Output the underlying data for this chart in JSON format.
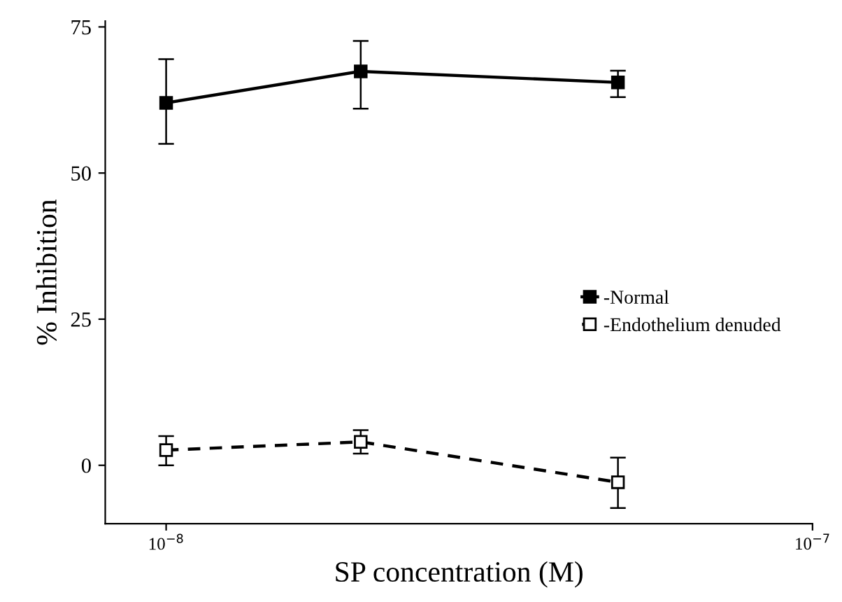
{
  "chart_data": {
    "type": "line",
    "xlabel": "SP concentration (M)",
    "ylabel": "% Inhibition",
    "log": "x",
    "xlim": [
      8.05e-09,
      1e-07
    ],
    "xticks": [
      {
        "value": 1e-08,
        "label": "10$^{−8}$"
      },
      {
        "value": 1e-07,
        "label": "10$^{−7}$"
      }
    ],
    "ylim": [
      -10,
      76
    ],
    "yticks": [
      0,
      25,
      50,
      75
    ],
    "grid": false,
    "legend": "right",
    "marker": "square",
    "x": [
      1e-08,
      2e-08,
      5e-08
    ],
    "series": [
      {
        "name": "-Normal",
        "color": "#000000",
        "line_style": "solid",
        "values": [
          62,
          67.4,
          65.5
        ],
        "errors": [
          [
            55,
            69.5
          ],
          [
            61,
            72.6
          ],
          [
            63,
            67.5
          ]
        ]
      },
      {
        "name": "-Endothelium denuded",
        "color": "#000000",
        "line_style": "dashed",
        "values": [
          2.6,
          4,
          -2.9
        ],
        "errors": [
          [
            0,
            5
          ],
          [
            2,
            6
          ],
          [
            -7.3,
            1.3
          ]
        ]
      }
    ]
  }
}
